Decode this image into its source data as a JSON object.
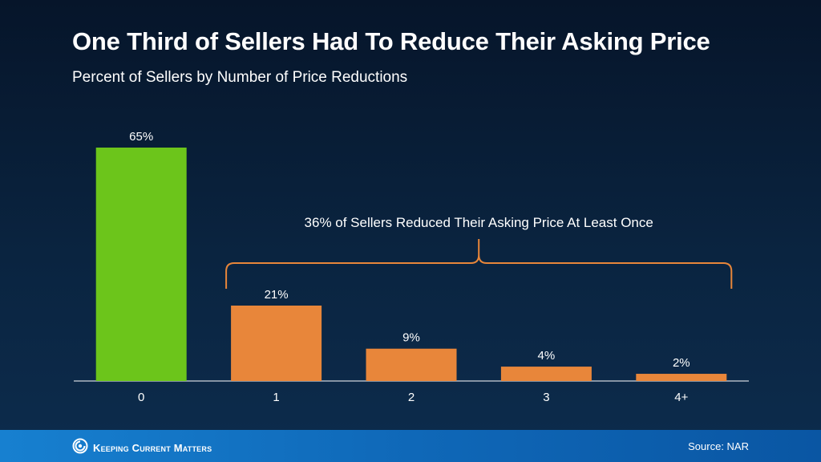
{
  "title": "One Third of Sellers Had To Reduce Their Asking Price",
  "subtitle": "Percent of Sellers by Number of Price Reductions",
  "footer": {
    "brand": "Keeping Current Matters",
    "source": "Source: NAR"
  },
  "colors": {
    "highlight": "#6cc51b",
    "bars": "#e8863a",
    "bracket": "#e8863a"
  },
  "chart_data": {
    "type": "bar",
    "title": "One Third of Sellers Had To Reduce Their Asking Price",
    "subtitle": "Percent of Sellers by Number of Price Reductions",
    "xlabel": "",
    "ylabel": "",
    "categories": [
      "0",
      "1",
      "2",
      "3",
      "4+"
    ],
    "values": [
      65,
      21,
      9,
      4,
      2
    ],
    "value_labels": [
      "65%",
      "21%",
      "9%",
      "4%",
      "2%"
    ],
    "ylim": [
      0,
      65
    ],
    "grid": false,
    "annotation": {
      "text": "36% of Sellers Reduced Their Asking Price At Least Once",
      "spans_categories": [
        "1",
        "4+"
      ]
    }
  }
}
